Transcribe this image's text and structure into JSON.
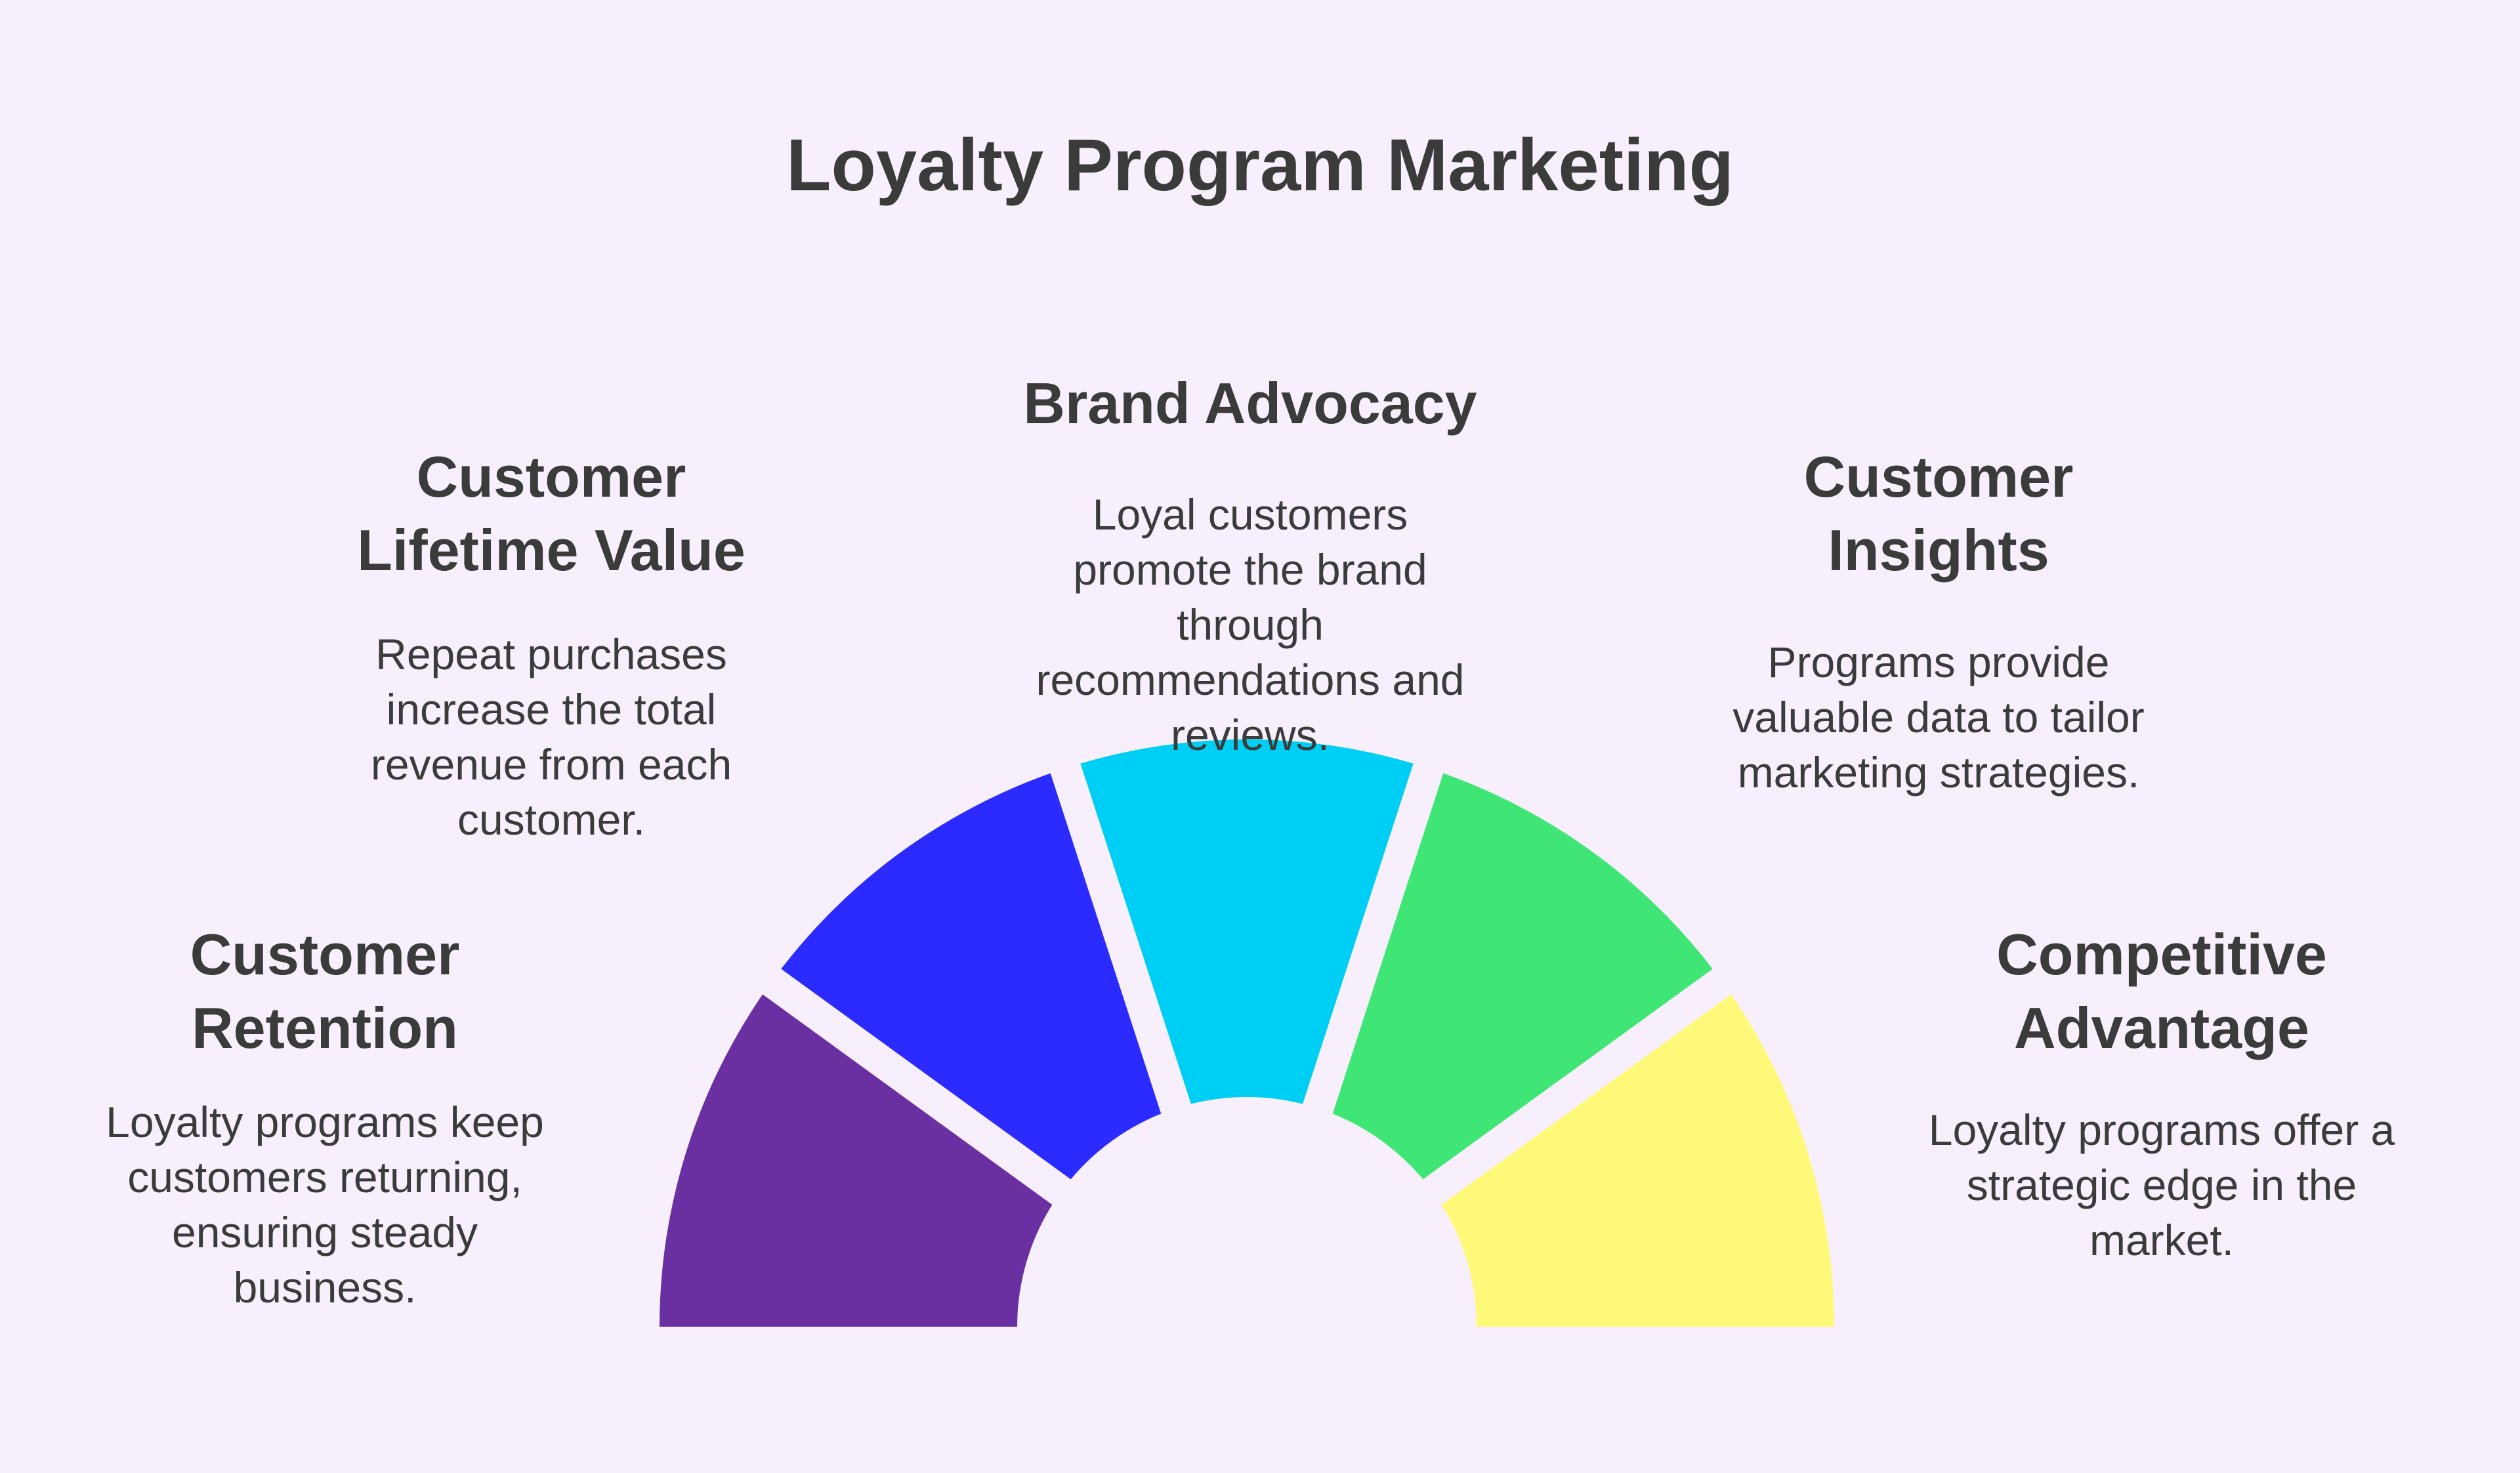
{
  "title": "Loyalty Program Marketing",
  "segments": [
    {
      "heading": [
        "Customer",
        "Retention"
      ],
      "body": [
        "Loyalty programs keep",
        "customers returning,",
        "ensuring steady",
        "business."
      ],
      "color": "#6a2fa0"
    },
    {
      "heading": [
        "Customer",
        "Lifetime Value"
      ],
      "body": [
        "Repeat purchases",
        "increase the total",
        "revenue from each",
        "customer."
      ],
      "color": "#2b2bff"
    },
    {
      "heading": [
        "Brand Advocacy"
      ],
      "body": [
        "Loyal customers",
        "promote the brand",
        "through",
        "recommendations and",
        "reviews."
      ],
      "color": "#00cff5"
    },
    {
      "heading": [
        "Customer",
        "Insights"
      ],
      "body": [
        "Programs provide",
        "valuable data to tailor",
        "marketing strategies."
      ],
      "color": "#40e675"
    },
    {
      "heading": [
        "Competitive",
        "Advantage"
      ],
      "body": [
        "Loyalty programs offer a",
        "strategic edge in the",
        "market."
      ],
      "color": "#fff97a"
    }
  ]
}
